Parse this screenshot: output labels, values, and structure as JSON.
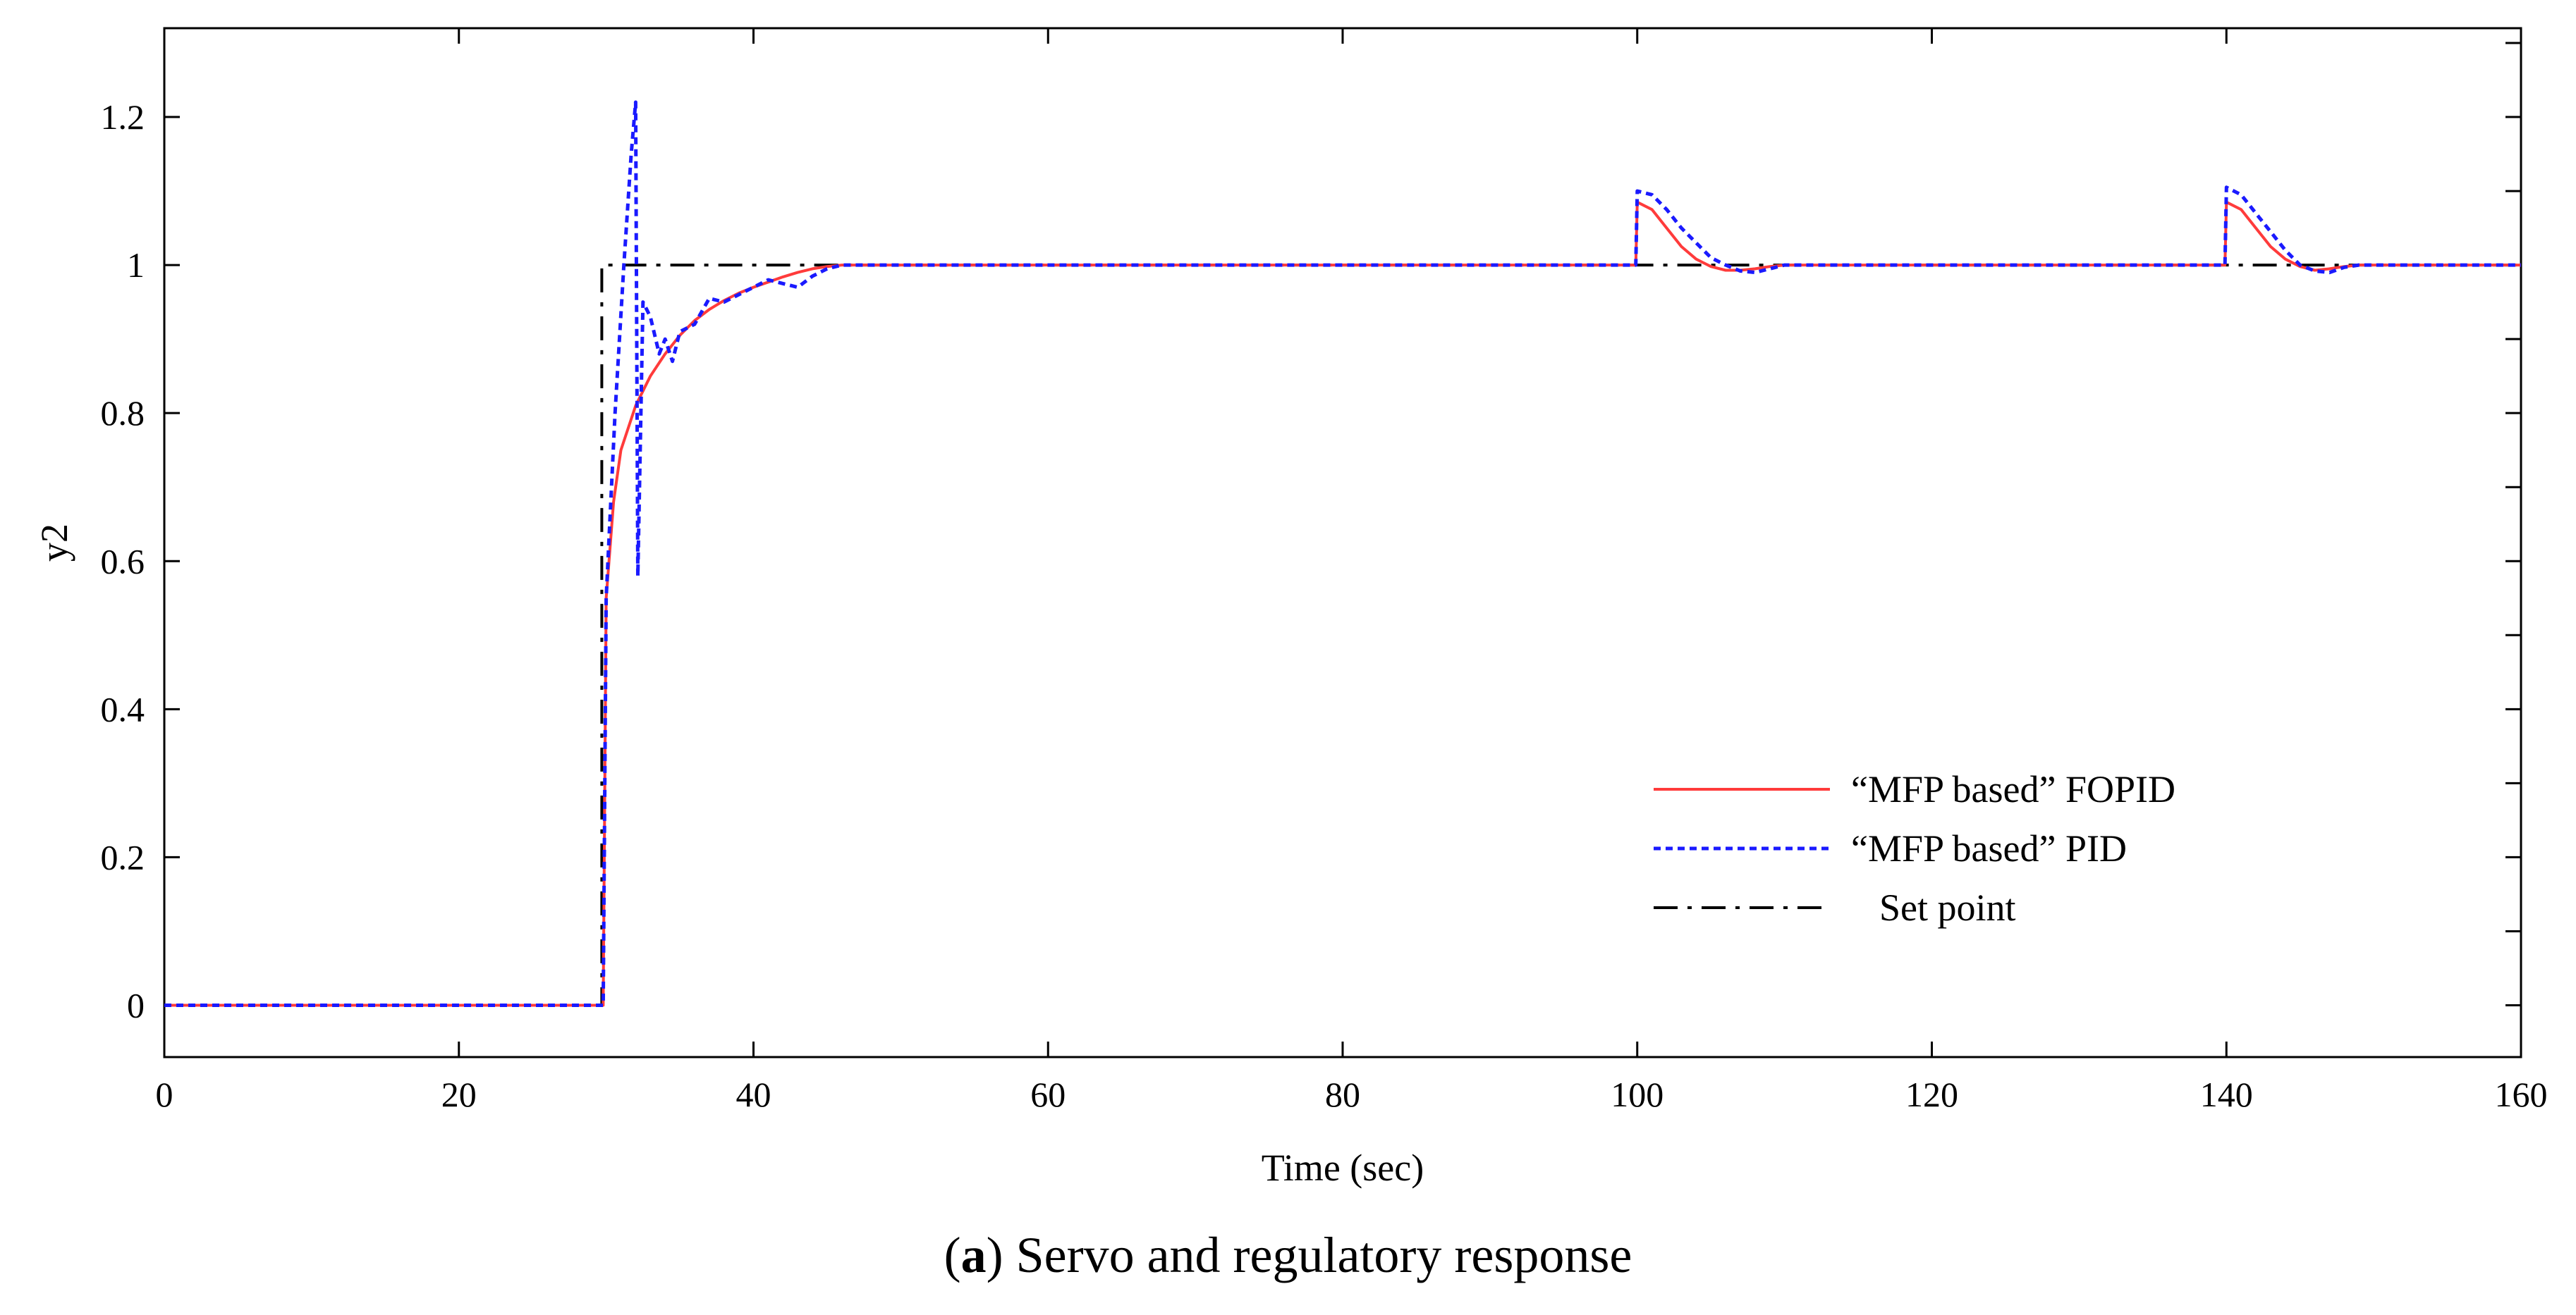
{
  "chart_data": {
    "type": "line",
    "title": "",
    "xlabel": "Time (sec)",
    "ylabel": "y2",
    "xlim": [
      0,
      160
    ],
    "ylim": [
      -0.07,
      1.32
    ],
    "x_ticks": [
      0,
      20,
      40,
      60,
      80,
      100,
      120,
      140,
      160
    ],
    "y_ticks": [
      0,
      0.2,
      0.4,
      0.6,
      0.8,
      1,
      1.2
    ],
    "y_tick_labels": [
      "0",
      "0.2",
      "0.4",
      "0.6",
      "0.8",
      "1",
      "1.2"
    ],
    "grid": false,
    "legend_position": "bottom-right",
    "series": [
      {
        "name": "“MFP based” FOPID",
        "color": "#ff3b3b",
        "style": "solid",
        "points": [
          [
            0,
            0
          ],
          [
            29.8,
            0
          ],
          [
            30,
            0.55
          ],
          [
            30.5,
            0.68
          ],
          [
            31,
            0.75
          ],
          [
            32,
            0.81
          ],
          [
            33,
            0.85
          ],
          [
            34,
            0.88
          ],
          [
            35,
            0.905
          ],
          [
            36,
            0.925
          ],
          [
            37,
            0.94
          ],
          [
            38,
            0.952
          ],
          [
            39,
            0.962
          ],
          [
            40,
            0.97
          ],
          [
            41,
            0.977
          ],
          [
            42,
            0.984
          ],
          [
            43,
            0.99
          ],
          [
            44,
            0.995
          ],
          [
            45,
            0.998
          ],
          [
            46,
            1
          ],
          [
            99.9,
            1
          ],
          [
            100,
            1.085
          ],
          [
            101,
            1.075
          ],
          [
            102,
            1.05
          ],
          [
            103,
            1.025
          ],
          [
            104,
            1.008
          ],
          [
            105,
            0.998
          ],
          [
            106,
            0.993
          ],
          [
            107,
            0.993
          ],
          [
            108,
            0.995
          ],
          [
            109,
            0.998
          ],
          [
            110,
            1
          ],
          [
            139.9,
            1
          ],
          [
            140,
            1.085
          ],
          [
            141,
            1.075
          ],
          [
            142,
            1.05
          ],
          [
            143,
            1.025
          ],
          [
            144,
            1.008
          ],
          [
            145,
            0.998
          ],
          [
            146,
            0.993
          ],
          [
            147,
            0.995
          ],
          [
            148,
            0.998
          ],
          [
            149,
            1
          ],
          [
            160,
            1
          ]
        ]
      },
      {
        "name": "“MFP based” PID",
        "color": "#1a1aff",
        "style": "dotted",
        "points": [
          [
            0,
            0
          ],
          [
            29.8,
            0
          ],
          [
            30,
            0.55
          ],
          [
            30.6,
            0.8
          ],
          [
            31.2,
            1.0
          ],
          [
            31.7,
            1.15
          ],
          [
            32,
            1.22
          ],
          [
            32.15,
            0.58
          ],
          [
            32.5,
            0.95
          ],
          [
            33,
            0.93
          ],
          [
            33.6,
            0.88
          ],
          [
            34,
            0.9
          ],
          [
            34.5,
            0.87
          ],
          [
            35,
            0.91
          ],
          [
            36,
            0.92
          ],
          [
            37,
            0.955
          ],
          [
            38,
            0.95
          ],
          [
            39,
            0.96
          ],
          [
            40,
            0.97
          ],
          [
            41,
            0.98
          ],
          [
            42,
            0.975
          ],
          [
            43,
            0.97
          ],
          [
            44,
            0.985
          ],
          [
            45,
            0.995
          ],
          [
            46,
            1.0
          ],
          [
            99.9,
            1
          ],
          [
            100,
            1.1
          ],
          [
            101,
            1.095
          ],
          [
            102,
            1.075
          ],
          [
            103,
            1.05
          ],
          [
            104,
            1.03
          ],
          [
            105,
            1.01
          ],
          [
            106,
            1.0
          ],
          [
            107,
            0.992
          ],
          [
            108,
            0.99
          ],
          [
            109,
            0.995
          ],
          [
            110,
            1
          ],
          [
            139.9,
            1
          ],
          [
            140,
            1.105
          ],
          [
            141,
            1.095
          ],
          [
            142,
            1.07
          ],
          [
            143,
            1.045
          ],
          [
            144,
            1.02
          ],
          [
            145,
            1.0
          ],
          [
            146,
            0.992
          ],
          [
            147,
            0.99
          ],
          [
            148,
            0.997
          ],
          [
            149,
            1
          ],
          [
            160,
            1
          ]
        ]
      },
      {
        "name": "Set point",
        "color": "#000000",
        "style": "dashdot",
        "points": [
          [
            0,
            0
          ],
          [
            29.7,
            0
          ],
          [
            29.7,
            1
          ],
          [
            160,
            1
          ]
        ]
      }
    ]
  },
  "caption": {
    "bold": "a",
    "rest": ") Servo and regulatory response",
    "open": "("
  }
}
